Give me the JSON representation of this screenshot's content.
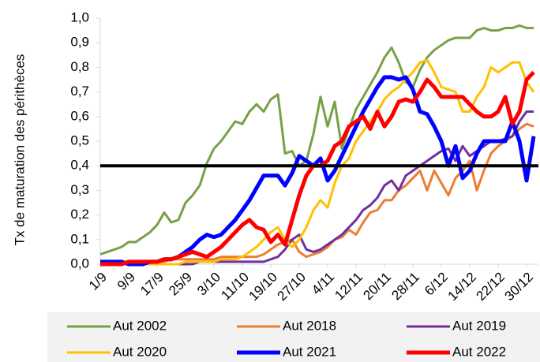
{
  "chart_data": {
    "type": "line",
    "y_label": "Tx de maturation des périthèces",
    "categories": [
      "1/9",
      null,
      null,
      null,
      "9/9",
      null,
      null,
      null,
      "17/9",
      null,
      null,
      null,
      "25/9",
      null,
      null,
      null,
      "3/10",
      null,
      null,
      null,
      "11/10",
      null,
      null,
      null,
      "19/10",
      null,
      null,
      null,
      "27/10",
      null,
      null,
      null,
      "4/11",
      null,
      null,
      null,
      "12/11",
      null,
      null,
      null,
      "20/11",
      null,
      null,
      null,
      "28/11",
      null,
      null,
      null,
      "6/12",
      null,
      null,
      null,
      "14/12",
      null,
      null,
      null,
      "22/12",
      null,
      null,
      null,
      "30/12",
      null
    ],
    "ylim": [
      0,
      1
    ],
    "yticks": [
      {
        "value": 0,
        "label": "0,0"
      },
      {
        "value": 0.1,
        "label": "0,1"
      },
      {
        "value": 0.2,
        "label": "0,2"
      },
      {
        "value": 0.3,
        "label": "0,3"
      },
      {
        "value": 0.4,
        "label": "0,4"
      },
      {
        "value": 0.5,
        "label": "0,5"
      },
      {
        "value": 0.6,
        "label": "0,6"
      },
      {
        "value": 0.7,
        "label": "0,7"
      },
      {
        "value": 0.8,
        "label": "0,8"
      },
      {
        "value": 0.9,
        "label": "0,9"
      },
      {
        "value": 1,
        "label": "1,0"
      }
    ],
    "grid": false,
    "reference_line": {
      "value": 0.4,
      "color": "#000000"
    },
    "series": [
      {
        "name": "Aut 2002",
        "color": "#77a047",
        "values": [
          0.04,
          0.05,
          0.06,
          0.07,
          0.09,
          0.09,
          0.11,
          0.13,
          0.16,
          0.21,
          0.17,
          0.18,
          0.25,
          0.28,
          0.32,
          0.41,
          0.47,
          0.5,
          0.54,
          0.58,
          0.57,
          0.62,
          0.65,
          0.62,
          0.67,
          0.69,
          0.45,
          0.46,
          0.4,
          0.42,
          0.53,
          0.68,
          0.56,
          0.66,
          0.47,
          0.55,
          0.63,
          0.68,
          0.73,
          0.78,
          0.84,
          0.88,
          0.82,
          0.74,
          0.72,
          0.79,
          0.84,
          0.87,
          0.89,
          0.91,
          0.92,
          0.92,
          0.92,
          0.95,
          0.96,
          0.95,
          0.95,
          0.96,
          0.96,
          0.97,
          0.96,
          0.96
        ]
      },
      {
        "name": "Aut 2018",
        "color": "#ed7d31",
        "values": [
          0,
          0,
          0,
          0,
          0,
          0,
          0,
          0,
          0.01,
          0.01,
          0.02,
          0.02,
          0.02,
          0.02,
          0.02,
          0.02,
          0.02,
          0.03,
          0.03,
          0.03,
          0.03,
          0.03,
          0.03,
          0.04,
          0.06,
          0.08,
          0.09,
          0.1,
          0.05,
          0.03,
          0.04,
          0.05,
          0.07,
          0.1,
          0.11,
          0.14,
          0.12,
          0.17,
          0.21,
          0.22,
          0.26,
          0.26,
          0.3,
          0.32,
          0.35,
          0.38,
          0.3,
          0.38,
          0.33,
          0.28,
          0.35,
          0.38,
          0.42,
          0.3,
          0.38,
          0.45,
          0.48,
          0.5,
          0.52,
          0.55,
          0.57,
          0.56
        ]
      },
      {
        "name": "Aut 2019",
        "color": "#7030a0",
        "values": [
          0,
          0,
          0,
          0,
          0,
          0,
          0,
          0,
          0,
          0,
          0,
          0,
          0,
          0,
          0.01,
          0.01,
          0.01,
          0.01,
          0.01,
          0.01,
          0.01,
          0.01,
          0.01,
          0.01,
          0.02,
          0.03,
          0.06,
          0.1,
          0.12,
          0.06,
          0.05,
          0.06,
          0.08,
          0.1,
          0.12,
          0.15,
          0.18,
          0.22,
          0.24,
          0.27,
          0.32,
          0.34,
          0.3,
          0.36,
          0.38,
          0.4,
          0.42,
          0.44,
          0.46,
          0.47,
          0.42,
          0.48,
          0.44,
          0.46,
          0.48,
          0.5,
          0.5,
          0.51,
          0.52,
          0.58,
          0.62,
          0.62
        ]
      },
      {
        "name": "Aut 2020",
        "color": "#ffc000",
        "values": [
          0,
          0,
          0,
          0,
          0,
          0,
          0,
          0,
          0,
          0,
          0,
          0,
          0.01,
          0.01,
          0.01,
          0.01,
          0.01,
          0.02,
          0.02,
          0.02,
          0.03,
          0.05,
          0.07,
          0.1,
          0.13,
          0.15,
          0.1,
          0.07,
          0.1,
          0.15,
          0.22,
          0.26,
          0.23,
          0.33,
          0.4,
          0.43,
          0.5,
          0.54,
          0.58,
          0.62,
          0.67,
          0.7,
          0.72,
          0.75,
          0.78,
          0.82,
          0.83,
          0.78,
          0.72,
          0.71,
          0.7,
          0.62,
          0.62,
          0.68,
          0.72,
          0.8,
          0.78,
          0.8,
          0.82,
          0.82,
          0.74,
          0.7
        ]
      },
      {
        "name": "Aut 2021",
        "color": "#0000ff",
        "values": [
          0.01,
          0.01,
          0.01,
          0.01,
          0,
          0,
          0,
          0.01,
          0.01,
          0.02,
          0.02,
          0.03,
          0.05,
          0.07,
          0.1,
          0.12,
          0.11,
          0.12,
          0.15,
          0.18,
          0.22,
          0.26,
          0.31,
          0.36,
          0.36,
          0.36,
          0.32,
          0.37,
          0.44,
          0.42,
          0.4,
          0.43,
          0.34,
          0.38,
          0.44,
          0.5,
          0.56,
          0.62,
          0.67,
          0.72,
          0.76,
          0.76,
          0.75,
          0.76,
          0.71,
          0.62,
          0.61,
          0.56,
          0.5,
          0.4,
          0.48,
          0.35,
          0.38,
          0.45,
          0.5,
          0.5,
          0.5,
          0.5,
          0.58,
          0.5,
          0.34,
          0.52
        ]
      },
      {
        "name": "Aut 2022",
        "color": "#ff0000",
        "values": [
          0,
          0,
          0,
          0,
          0.01,
          0.01,
          0.01,
          0.01,
          0.01,
          0.02,
          0.02,
          0.03,
          0.04,
          0.05,
          0.04,
          0.03,
          0.05,
          0.07,
          0.1,
          0.13,
          0.16,
          0.18,
          0.15,
          0.14,
          0.09,
          0.12,
          0.08,
          0.18,
          0.28,
          0.36,
          0.4,
          0.4,
          0.42,
          0.48,
          0.5,
          0.56,
          0.58,
          0.6,
          0.55,
          0.62,
          0.56,
          0.6,
          0.66,
          0.67,
          0.66,
          0.7,
          0.75,
          0.72,
          0.68,
          0.68,
          0.68,
          0.68,
          0.65,
          0.62,
          0.6,
          0.6,
          0.62,
          0.68,
          0.57,
          0.62,
          0.75,
          0.78
        ]
      }
    ]
  }
}
